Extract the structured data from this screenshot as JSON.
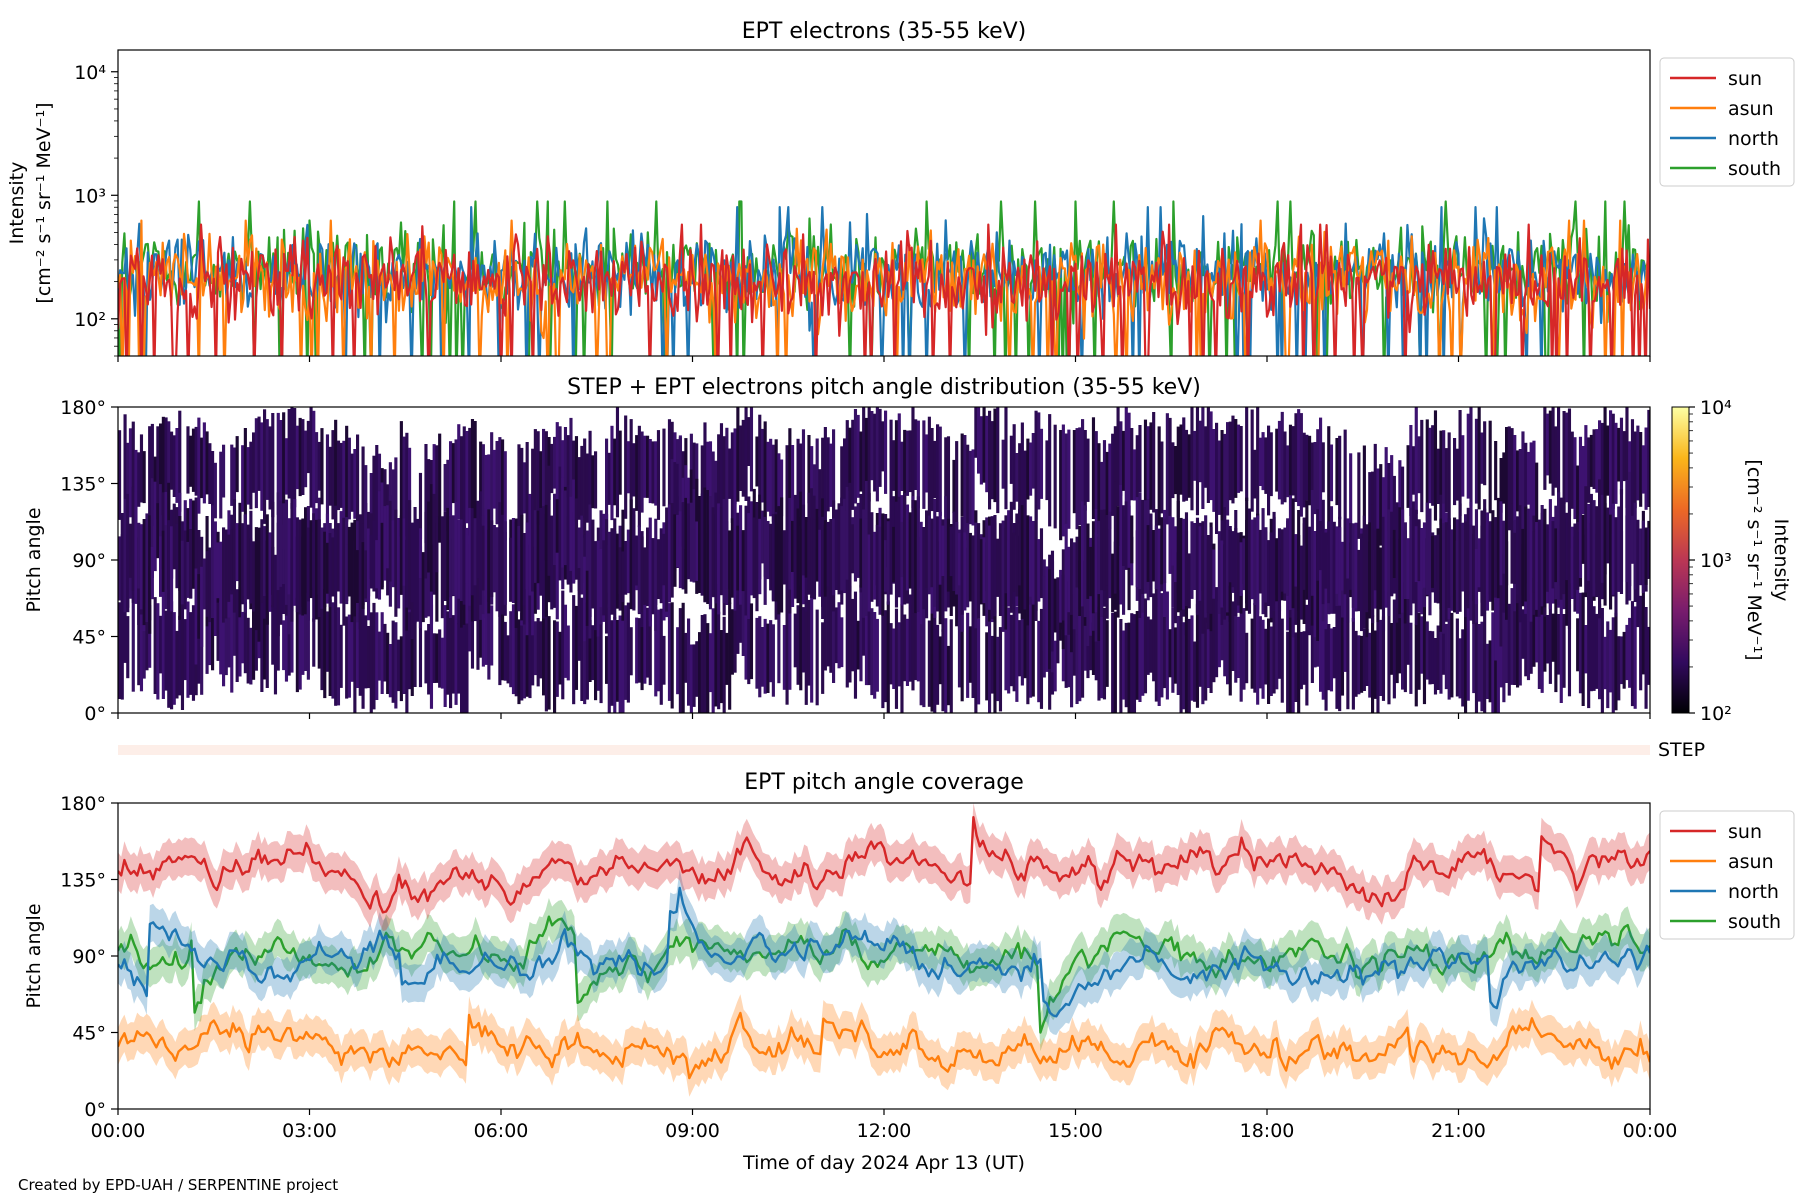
{
  "chart_data": [
    {
      "type": "line",
      "title": "EPT electrons (35-55 keV)",
      "ylabel_lines": [
        "Intensity",
        "[cm⁻² s⁻¹ sr⁻¹ MeV⁻¹]"
      ],
      "yscale": "log",
      "ylim": [
        50,
        15000
      ],
      "xlim_hours": [
        0,
        24
      ],
      "yticks": [
        {
          "value": 100,
          "label": "10²"
        },
        {
          "value": 1000,
          "label": "10³"
        },
        {
          "value": 10000,
          "label": "10⁴"
        }
      ],
      "legend_position": "outside-top-right",
      "series": [
        {
          "name": "sun",
          "color": "#d62728",
          "typical_range": [
            50,
            650
          ]
        },
        {
          "name": "asun",
          "color": "#ff7f0e",
          "typical_range": [
            50,
            700
          ]
        },
        {
          "name": "north",
          "color": "#1f77b4",
          "typical_range": [
            50,
            900
          ]
        },
        {
          "name": "south",
          "color": "#2ca02c",
          "typical_range": [
            50,
            1000
          ]
        }
      ]
    },
    {
      "type": "heatmap",
      "title": "STEP + EPT electrons pitch angle distribution (35-55 keV)",
      "ylabel": "Pitch angle",
      "ylim": [
        0,
        180
      ],
      "xlim_hours": [
        0,
        24
      ],
      "yticks": [
        "0°",
        "45°",
        "90°",
        "135°",
        "180°"
      ],
      "yvalues": [
        0,
        45,
        90,
        135,
        180
      ],
      "colorbar": {
        "label_lines": [
          "Intensity",
          "[cm⁻² s⁻¹ sr⁻¹ MeV⁻¹]"
        ],
        "scale": "log",
        "range": [
          100,
          10000
        ],
        "ticks": [
          {
            "value": 100,
            "label": "10²"
          },
          {
            "value": 1000,
            "label": "10³"
          },
          {
            "value": 10000,
            "label": "10⁴"
          }
        ],
        "colormap": [
          "#000004",
          "#320a5e",
          "#781c6d",
          "#bb3754",
          "#ed6925",
          "#fbb61a",
          "#fcffa4"
        ]
      }
    },
    {
      "type": "bar",
      "label": "STEP",
      "color": "#fdeee8"
    },
    {
      "type": "line",
      "title": "EPT pitch angle coverage",
      "ylabel": "Pitch angle",
      "ylim": [
        0,
        180
      ],
      "xlim_hours": [
        0,
        24
      ],
      "yticks": [
        "0°",
        "45°",
        "90°",
        "135°",
        "180°"
      ],
      "yvalues": [
        0,
        45,
        90,
        135,
        180
      ],
      "legend_position": "outside-top-right",
      "series": [
        {
          "name": "sun",
          "color": "#d62728",
          "typical_value": 140
        },
        {
          "name": "asun",
          "color": "#ff7f0e",
          "typical_value": 35
        },
        {
          "name": "north",
          "color": "#1f77b4",
          "typical_value": 85
        },
        {
          "name": "south",
          "color": "#2ca02c",
          "typical_value": 95
        }
      ]
    }
  ],
  "x_axis": {
    "xlabel": "Time of day 2024 Apr 13 (UT)",
    "ticks": [
      {
        "hour": 0,
        "label": "00:00"
      },
      {
        "hour": 3,
        "label": "03:00"
      },
      {
        "hour": 6,
        "label": "06:00"
      },
      {
        "hour": 9,
        "label": "09:00"
      },
      {
        "hour": 12,
        "label": "12:00"
      },
      {
        "hour": 15,
        "label": "15:00"
      },
      {
        "hour": 18,
        "label": "18:00"
      },
      {
        "hour": 21,
        "label": "21:00"
      },
      {
        "hour": 24,
        "label": "00:00"
      }
    ]
  },
  "credit": "Created by EPD-UAH / SERPENTINE project"
}
